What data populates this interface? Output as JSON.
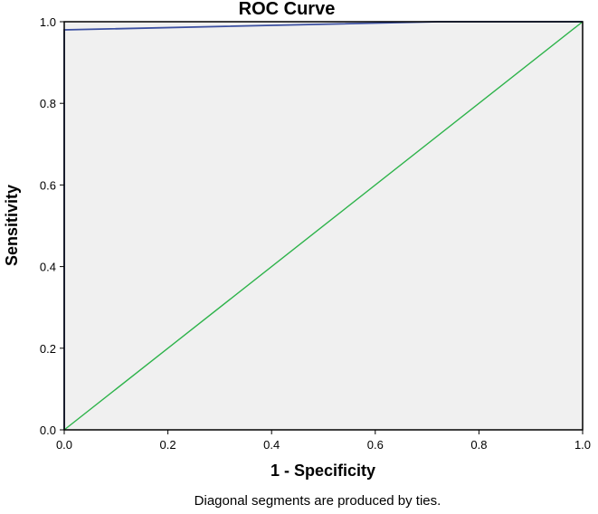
{
  "chart_data": {
    "type": "line",
    "title": "ROC Curve",
    "xlabel": "1 - Specificity",
    "ylabel": "Sensitivity",
    "footnote": "Diagonal segments are produced by ties.",
    "xlim": [
      0,
      1
    ],
    "ylim": [
      0,
      1
    ],
    "xticks": [
      0.0,
      0.2,
      0.4,
      0.6,
      0.8,
      1.0
    ],
    "yticks": [
      0.0,
      0.2,
      0.4,
      0.6,
      0.8,
      1.0
    ],
    "xtick_labels": [
      "0.0",
      "0.2",
      "0.4",
      "0.6",
      "0.8",
      "1.0"
    ],
    "ytick_labels": [
      "0.0",
      "0.2",
      "0.4",
      "0.6",
      "0.8",
      "1.0"
    ],
    "grid": false,
    "plot_background": "#f0f0f0",
    "series": [
      {
        "color": "#3b4fa0",
        "x": [
          0.0,
          0.0,
          0.0,
          0.72,
          1.0
        ],
        "y": [
          0.0,
          0.98,
          0.98,
          1.0,
          1.0
        ]
      },
      {
        "color": "#2db34a",
        "x": [
          0.0,
          1.0
        ],
        "y": [
          0.0,
          1.0
        ]
      }
    ]
  }
}
